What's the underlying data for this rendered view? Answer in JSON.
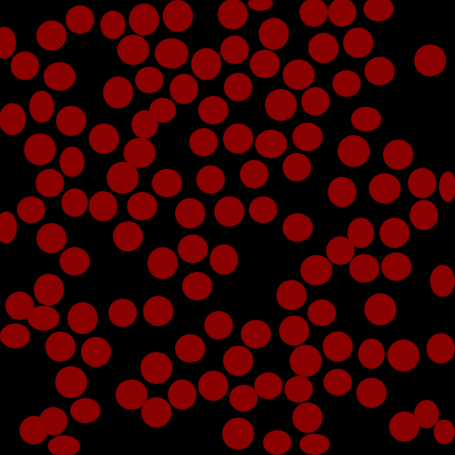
{
  "image": {
    "background_color": "#000000",
    "blob_color": "#8B0000"
  }
}
